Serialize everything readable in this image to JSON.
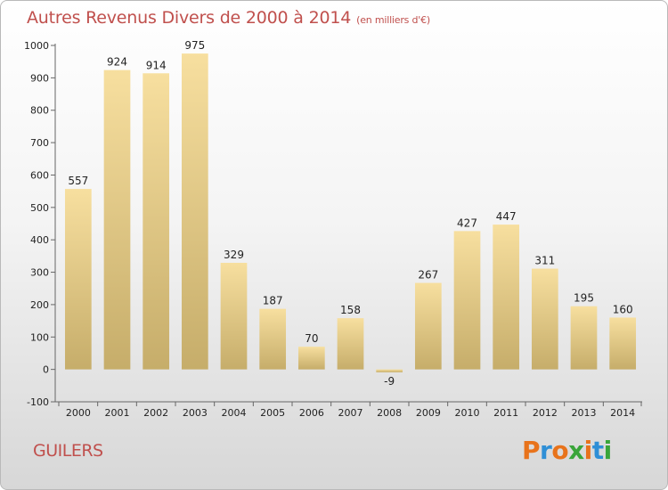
{
  "header": {
    "title": "Autres Revenus Divers de 2000 à 2014",
    "subtitle": "(en milliers d'€)"
  },
  "footer": {
    "city": "GUILERS",
    "brand": "Proxiti"
  },
  "colors": {
    "title": "#c0504d",
    "bar_top": "#f7df9f",
    "bar_bottom": "#c6ad6a"
  },
  "chart_data": {
    "type": "bar",
    "title": "Autres Revenus Divers de 2000 à 2014",
    "subtitle": "(en milliers d'€)",
    "categories": [
      "2000",
      "2001",
      "2002",
      "2003",
      "2004",
      "2005",
      "2006",
      "2007",
      "2008",
      "2009",
      "2010",
      "2011",
      "2012",
      "2013",
      "2014"
    ],
    "values": [
      557,
      924,
      914,
      975,
      329,
      187,
      70,
      158,
      -9,
      267,
      427,
      447,
      311,
      195,
      160
    ],
    "data_labels": [
      "557",
      "924",
      "914",
      "975",
      "329",
      "187",
      "70",
      "158",
      "-9",
      "267",
      "427",
      "447",
      "311",
      "195",
      "160"
    ],
    "ylim": [
      -100,
      1000
    ],
    "yticks": [
      -100,
      0,
      100,
      200,
      300,
      400,
      500,
      600,
      700,
      800,
      900,
      1000
    ],
    "ytick_labels": [
      "-100",
      "0",
      "100",
      "200",
      "300",
      "400",
      "500",
      "600",
      "700",
      "800",
      "900",
      "1000"
    ],
    "xlabel": "",
    "ylabel": "",
    "grid": false,
    "legend": "none"
  }
}
